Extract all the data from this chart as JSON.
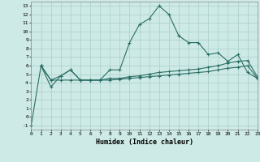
{
  "line1_x": [
    0,
    1,
    2,
    3,
    4,
    5,
    6,
    7,
    8,
    9,
    10,
    11,
    12,
    13,
    14,
    15,
    16,
    17,
    18,
    19,
    20,
    21,
    22,
    23
  ],
  "line1_y": [
    -1.0,
    6.0,
    3.5,
    4.8,
    5.5,
    4.3,
    4.3,
    4.3,
    5.5,
    5.5,
    8.7,
    10.8,
    11.5,
    13.0,
    12.0,
    9.5,
    8.7,
    8.7,
    7.3,
    7.5,
    6.5,
    7.3,
    5.2,
    4.5
  ],
  "line2_x": [
    1,
    2,
    3,
    4,
    5,
    6,
    7,
    8,
    9,
    10,
    11,
    12,
    13,
    14,
    15,
    16,
    17,
    18,
    19,
    20,
    21,
    22,
    23
  ],
  "line2_y": [
    6.0,
    4.3,
    4.8,
    5.5,
    4.3,
    4.3,
    4.3,
    4.5,
    4.5,
    4.7,
    4.8,
    5.0,
    5.2,
    5.3,
    5.4,
    5.5,
    5.6,
    5.8,
    6.0,
    6.3,
    6.5,
    6.6,
    4.7
  ],
  "line3_x": [
    1,
    2,
    3,
    4,
    5,
    6,
    7,
    8,
    9,
    10,
    11,
    12,
    13,
    14,
    15,
    16,
    17,
    18,
    19,
    20,
    21,
    22,
    23
  ],
  "line3_y": [
    6.0,
    4.3,
    4.3,
    4.3,
    4.3,
    4.3,
    4.3,
    4.3,
    4.4,
    4.5,
    4.6,
    4.7,
    4.8,
    4.9,
    5.0,
    5.1,
    5.2,
    5.3,
    5.5,
    5.7,
    5.8,
    6.0,
    4.5
  ],
  "line_color": "#2a6e65",
  "bg_color": "#ceeae6",
  "grid_color": "#a8cdc9",
  "xlabel": "Humidex (Indice chaleur)",
  "xtick_labels": [
    "0",
    "1",
    "2",
    "3",
    "4",
    "5",
    "6",
    "7",
    "8",
    "9",
    "10",
    "11",
    "12",
    "13",
    "14",
    "15",
    "16",
    "17",
    "18",
    "19",
    "20",
    "21",
    "22",
    "23"
  ],
  "xlim": [
    0,
    23
  ],
  "ylim": [
    -1.5,
    13.5
  ],
  "ytick_vals": [
    -1,
    0,
    1,
    2,
    3,
    4,
    5,
    6,
    7,
    8,
    9,
    10,
    11,
    12,
    13
  ],
  "marker": "+",
  "markersize": 3,
  "linewidth": 0.8
}
